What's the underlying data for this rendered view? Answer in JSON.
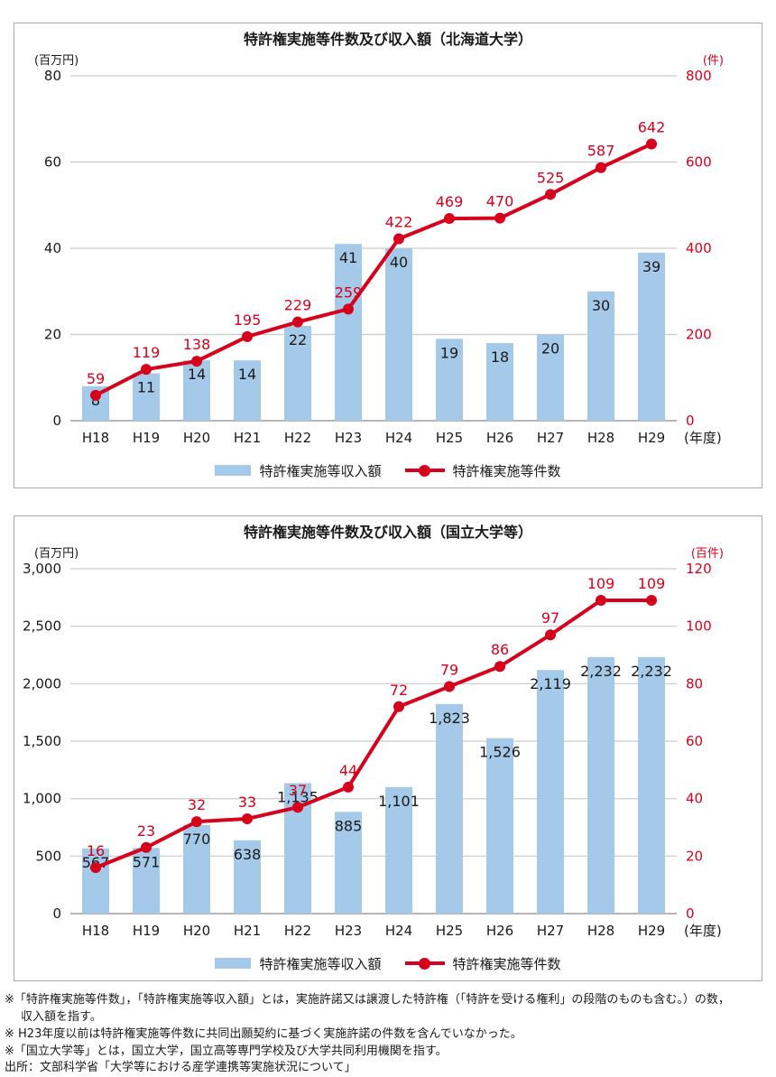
{
  "colors": {
    "bar": "#a5c9e8",
    "line": "#d6001c",
    "grid": "#c9c9c9",
    "axis": "#9e9e9e",
    "text": "#1a1a1a"
  },
  "chart_data": [
    {
      "type": "bar+line",
      "title": "特許権実施等件数及び収入額（北海道大学）",
      "categories": [
        "H18",
        "H19",
        "H20",
        "H21",
        "H22",
        "H23",
        "H24",
        "H25",
        "H26",
        "H27",
        "H28",
        "H29"
      ],
      "x_axis_suffix": "(年度)",
      "grid": true,
      "legend_position": "bottom",
      "left_axis": {
        "unit": "(百万円)",
        "max": 80,
        "ticks": [
          0,
          20,
          40,
          60,
          80
        ],
        "tick_labels": [
          "0",
          "20",
          "40",
          "60",
          "80"
        ]
      },
      "right_axis": {
        "unit": "(件)",
        "max": 800,
        "ticks": [
          0,
          200,
          400,
          600,
          800
        ],
        "tick_labels": [
          "0",
          "200",
          "400",
          "600",
          "800"
        ]
      },
      "bar_series": {
        "name": "特許権実施等収入額",
        "axis": "left",
        "values": [
          8,
          11,
          14,
          14,
          22,
          41,
          40,
          19,
          18,
          20,
          30,
          39
        ],
        "labels": [
          "8",
          "11",
          "14",
          "14",
          "22",
          "41",
          "40",
          "19",
          "18",
          "20",
          "30",
          "39"
        ]
      },
      "line_series": {
        "name": "特許権実施等件数",
        "axis": "right",
        "values": [
          59,
          119,
          138,
          195,
          229,
          259,
          422,
          469,
          470,
          525,
          587,
          642
        ],
        "labels": [
          "59",
          "119",
          "138",
          "195",
          "229",
          "259",
          "422",
          "469",
          "470",
          "525",
          "587",
          "642"
        ]
      }
    },
    {
      "type": "bar+line",
      "title": "特許権実施等件数及び収入額（国立大学等）",
      "categories": [
        "H18",
        "H19",
        "H20",
        "H21",
        "H22",
        "H23",
        "H24",
        "H25",
        "H26",
        "H27",
        "H28",
        "H29"
      ],
      "x_axis_suffix": "(年度)",
      "grid": true,
      "legend_position": "bottom",
      "left_axis": {
        "unit": "(百万円)",
        "max": 3000,
        "ticks": [
          0,
          500,
          1000,
          1500,
          2000,
          2500,
          3000
        ],
        "tick_labels": [
          "0",
          "500",
          "1,000",
          "1,500",
          "2,000",
          "2,500",
          "3,000"
        ]
      },
      "right_axis": {
        "unit": "(百件)",
        "max": 120,
        "ticks": [
          0,
          20,
          40,
          60,
          80,
          100,
          120
        ],
        "tick_labels": [
          "0",
          "20",
          "40",
          "60",
          "80",
          "100",
          "120"
        ]
      },
      "bar_series": {
        "name": "特許権実施等収入額",
        "axis": "left",
        "values": [
          567,
          571,
          770,
          638,
          1135,
          885,
          1101,
          1823,
          1526,
          2119,
          2232,
          2232
        ],
        "labels": [
          "567",
          "571",
          "770",
          "638",
          "1,135",
          "885",
          "1,101",
          "1,823",
          "1,526",
          "2,119",
          "2,232",
          "2,232"
        ]
      },
      "line_series": {
        "name": "特許権実施等件数",
        "axis": "right",
        "values": [
          16,
          23,
          32,
          33,
          37,
          44,
          72,
          79,
          86,
          97,
          109,
          109
        ],
        "labels": [
          "16",
          "23",
          "32",
          "33",
          "37",
          "44",
          "72",
          "79",
          "86",
          "97",
          "109",
          "109"
        ]
      }
    }
  ],
  "notes": [
    "※「特許権実施等件数」，「特許権実施等収入額」とは，実施許諾又は譲渡した特許権（「特許を受ける権利」の段階のものも含む。）の数，",
    "収入額を指す。",
    "※ H23年度以前は特許権実施等件数に共同出願契約に基づく実施許諾の件数を含んでいなかった。",
    "※「国立大学等」とは，国立大学，国立高等専門学校及び大学共同利用機関を指す。",
    "出所：文部科学省「大学等における産学連携等実施状況について」"
  ]
}
